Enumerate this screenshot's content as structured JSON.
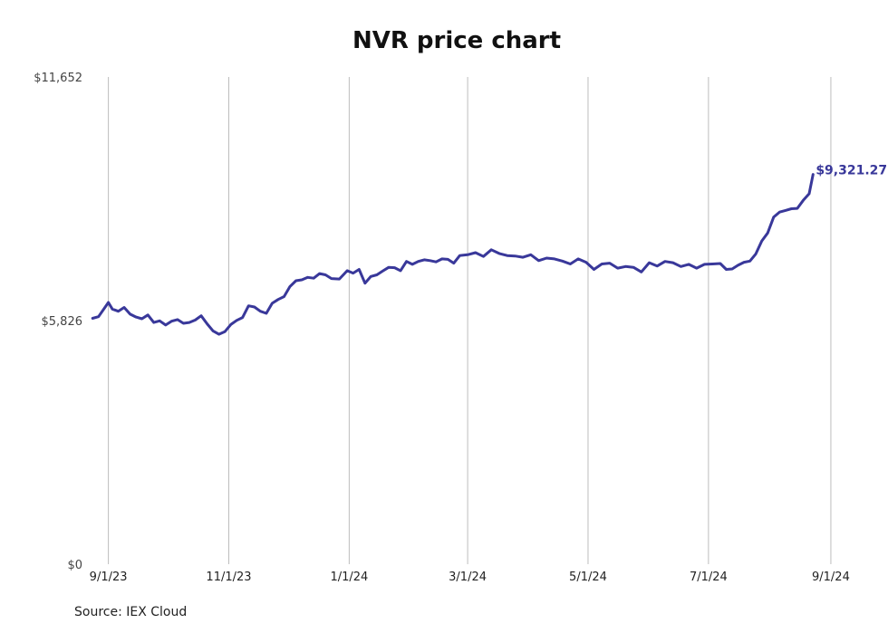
{
  "chart_data": {
    "type": "line",
    "title": "NVR price chart",
    "source": "Source: IEX Cloud",
    "xlabel": "",
    "ylabel": "",
    "ylim": [
      0,
      11652
    ],
    "xlim": [
      "2023-08-23",
      "2024-09-07"
    ],
    "grid": "vertical",
    "line_color": "#39389a",
    "y_ticks": [
      {
        "value": 0,
        "label": "$0"
      },
      {
        "value": 5826,
        "label": "$5,826"
      },
      {
        "value": 11652,
        "label": "$11,652"
      }
    ],
    "x_ticks": [
      {
        "date": "2023-09-01",
        "label": "9/1/23"
      },
      {
        "date": "2023-11-01",
        "label": "11/1/23"
      },
      {
        "date": "2024-01-01",
        "label": "1/1/24"
      },
      {
        "date": "2024-03-01",
        "label": "3/1/24"
      },
      {
        "date": "2024-05-01",
        "label": "5/1/24"
      },
      {
        "date": "2024-07-01",
        "label": "7/1/24"
      },
      {
        "date": "2024-09-01",
        "label": "9/1/24"
      }
    ],
    "end_label": "$9,321.27",
    "series": [
      {
        "x": [
          "2023-08-24",
          "2023-08-27",
          "2023-08-30",
          "2023-09-01",
          "2023-09-03",
          "2023-09-06",
          "2023-09-09",
          "2023-09-12",
          "2023-09-15",
          "2023-09-18",
          "2023-09-21",
          "2023-09-24",
          "2023-09-27",
          "2023-09-30",
          "2023-10-03",
          "2023-10-06",
          "2023-10-09",
          "2023-10-12",
          "2023-10-15",
          "2023-10-18",
          "2023-10-21",
          "2023-10-24",
          "2023-10-27",
          "2023-10-30",
          "2023-11-02",
          "2023-11-05",
          "2023-11-08",
          "2023-11-11",
          "2023-11-14",
          "2023-11-17",
          "2023-11-20",
          "2023-11-23",
          "2023-11-26",
          "2023-11-29",
          "2023-12-02",
          "2023-12-05",
          "2023-12-08",
          "2023-12-11",
          "2023-12-14",
          "2023-12-17",
          "2023-12-20",
          "2023-12-23",
          "2023-12-27",
          "2023-12-31",
          "2024-01-03",
          "2024-01-06",
          "2024-01-09",
          "2024-01-12",
          "2024-01-15",
          "2024-01-18",
          "2024-01-21",
          "2024-01-24",
          "2024-01-27",
          "2024-01-30",
          "2024-02-02",
          "2024-02-05",
          "2024-02-08",
          "2024-02-11",
          "2024-02-14",
          "2024-02-17",
          "2024-02-20",
          "2024-02-23",
          "2024-02-26",
          "2024-03-01",
          "2024-03-05",
          "2024-03-09",
          "2024-03-13",
          "2024-03-17",
          "2024-03-21",
          "2024-03-25",
          "2024-03-29",
          "2024-04-02",
          "2024-04-06",
          "2024-04-10",
          "2024-04-14",
          "2024-04-18",
          "2024-04-22",
          "2024-04-26",
          "2024-04-30",
          "2024-05-04",
          "2024-05-08",
          "2024-05-12",
          "2024-05-16",
          "2024-05-20",
          "2024-05-24",
          "2024-05-28",
          "2024-06-01",
          "2024-06-05",
          "2024-06-09",
          "2024-06-13",
          "2024-06-17",
          "2024-06-21",
          "2024-06-25",
          "2024-06-29",
          "2024-07-03",
          "2024-07-07",
          "2024-07-10",
          "2024-07-13",
          "2024-07-16",
          "2024-07-19",
          "2024-07-22",
          "2024-07-25",
          "2024-07-28",
          "2024-07-31",
          "2024-08-03",
          "2024-08-06",
          "2024-08-09",
          "2024-08-12",
          "2024-08-15",
          "2024-08-18",
          "2024-08-21",
          "2024-08-23"
        ],
        "values": [
          5880,
          5920,
          6120,
          6260,
          6100,
          6050,
          6140,
          5980,
          5910,
          5870,
          5960,
          5780,
          5820,
          5720,
          5810,
          5850,
          5760,
          5780,
          5840,
          5940,
          5750,
          5580,
          5500,
          5560,
          5730,
          5830,
          5900,
          6180,
          6150,
          6050,
          6000,
          6240,
          6330,
          6400,
          6640,
          6780,
          6800,
          6860,
          6840,
          6950,
          6920,
          6830,
          6820,
          7020,
          6960,
          7050,
          6720,
          6880,
          6920,
          7010,
          7100,
          7090,
          7020,
          7240,
          7170,
          7240,
          7280,
          7260,
          7230,
          7300,
          7290,
          7200,
          7380,
          7400,
          7450,
          7360,
          7520,
          7430,
          7380,
          7370,
          7340,
          7400,
          7260,
          7320,
          7300,
          7250,
          7180,
          7300,
          7220,
          7050,
          7180,
          7200,
          7080,
          7120,
          7100,
          6990,
          7210,
          7130,
          7240,
          7210,
          7120,
          7170,
          7080,
          7170,
          7180,
          7190,
          7050,
          7060,
          7150,
          7220,
          7250,
          7420,
          7730,
          7920,
          8300,
          8420,
          8460,
          8500,
          8510,
          8700,
          8860,
          9321.27
        ]
      }
    ]
  }
}
